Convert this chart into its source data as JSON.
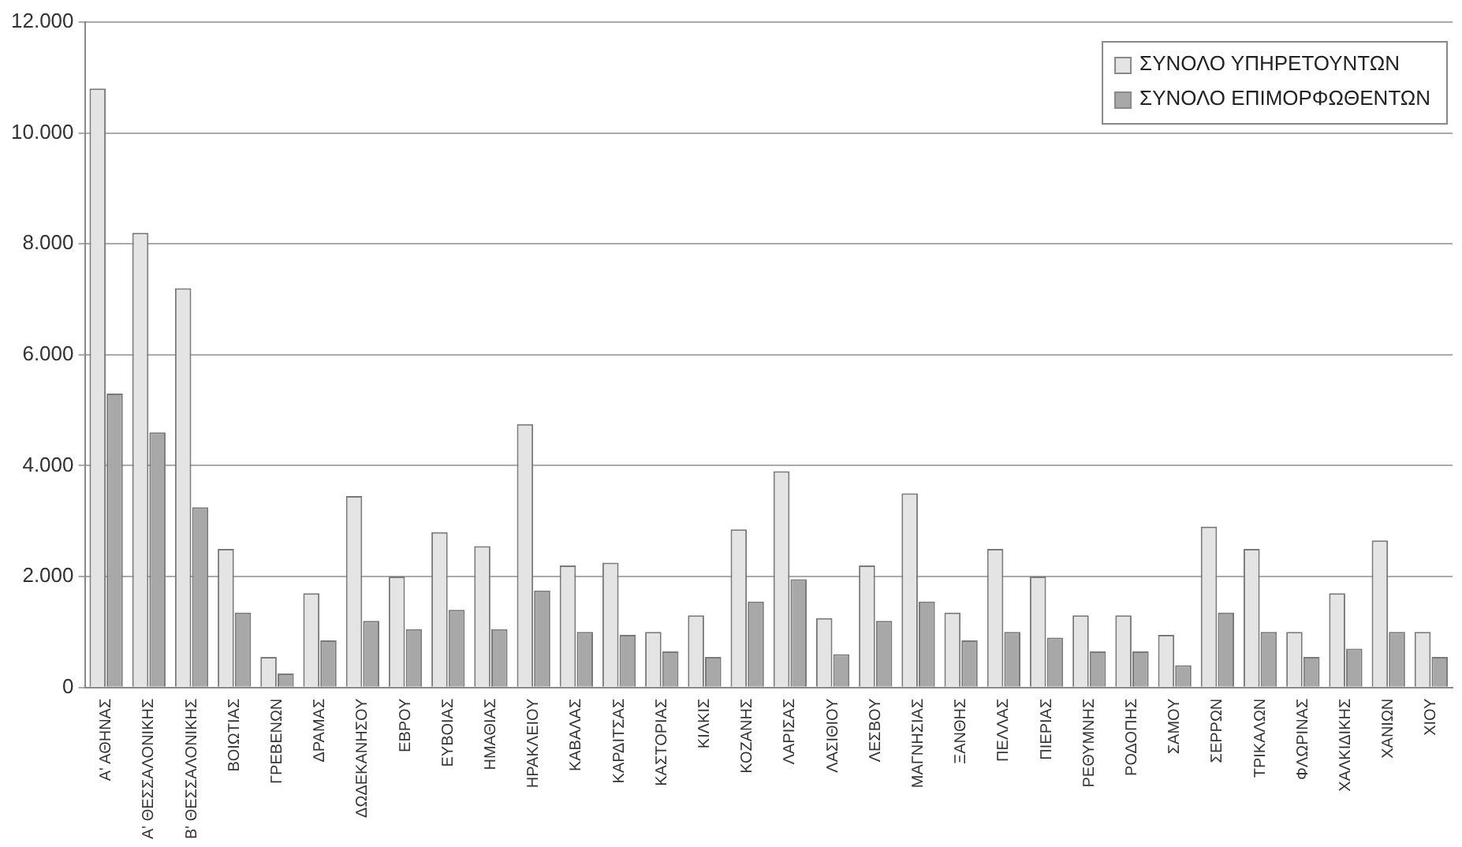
{
  "chart_data": {
    "type": "bar",
    "categories": [
      "Α' ΑΘΗΝΑΣ",
      "Α' ΘΕΣΣΑΛΟΝΙΚΗΣ",
      "Β' ΘΕΣΣΑΛΟΝΙΚΗΣ",
      "ΒΟΙΩΤΙΑΣ",
      "ΓΡΕΒΕΝΩΝ",
      "ΔΡΑΜΑΣ",
      "ΔΩΔΕΚΑΝΗΣΟΥ",
      "ΕΒΡΟΥ",
      "ΕΥΒΟΙΑΣ",
      "ΗΜΑΘΙΑΣ",
      "ΗΡΑΚΛΕΙΟΥ",
      "ΚΑΒΑΛΑΣ",
      "ΚΑΡΔΙΤΣΑΣ",
      "ΚΑΣΤΟΡΙΑΣ",
      "ΚΙΛΚΙΣ",
      "ΚΟΖΑΝΗΣ",
      "ΛΑΡΙΣΑΣ",
      "ΛΑΣΙΘΙΟΥ",
      "ΛΕΣΒΟΥ",
      "ΜΑΓΝΗΣΙΑΣ",
      "ΞΑΝΘΗΣ",
      "ΠΕΛΛΑΣ",
      "ΠΙΕΡΙΑΣ",
      "ΡΕΘΥΜΝΗΣ",
      "ΡΟΔΟΠΗΣ",
      "ΣΑΜΟΥ",
      "ΣΕΡΡΩΝ",
      "ΤΡΙΚΑΛΩΝ",
      "ΦΛΩΡΙΝΑΣ",
      "ΧΑΛΚΙΔΙΚΗΣ",
      "ΧΑΝΙΩΝ",
      "ΧΙΟΥ"
    ],
    "series": [
      {
        "name": "ΣΥΝΟΛΟ ΥΠΗΡΕΤΟΥΝΤΩΝ",
        "color": "#e4e4e4",
        "values": [
          10800,
          8200,
          7200,
          2500,
          550,
          1700,
          3450,
          2000,
          2800,
          2550,
          4750,
          2200,
          2250,
          1000,
          1300,
          2850,
          3900,
          1250,
          2200,
          3500,
          1350,
          2500,
          2000,
          1300,
          1300,
          950,
          2900,
          2500,
          1000,
          1700,
          2650,
          1000
        ]
      },
      {
        "name": "ΣΥΝΟΛΟ ΕΠΙΜΟΡΦΩΘΕΝΤΩΝ",
        "color": "#a8a8a8",
        "values": [
          5300,
          4600,
          3250,
          1350,
          250,
          850,
          1200,
          1050,
          1400,
          1050,
          1750,
          1000,
          950,
          650,
          550,
          1550,
          1950,
          600,
          1200,
          1550,
          850,
          1000,
          900,
          650,
          650,
          400,
          1350,
          1000,
          550,
          700,
          1000,
          550
        ]
      }
    ],
    "ylim": [
      0,
      12000
    ],
    "yticks": [
      {
        "value": 0,
        "label": "0"
      },
      {
        "value": 2000,
        "label": "2.000"
      },
      {
        "value": 4000,
        "label": "4.000"
      },
      {
        "value": 6000,
        "label": "6.000"
      },
      {
        "value": 8000,
        "label": "8.000"
      },
      {
        "value": 10000,
        "label": "10.000"
      },
      {
        "value": 12000,
        "label": "12.000"
      }
    ],
    "grid": "y",
    "legend": "top right"
  }
}
